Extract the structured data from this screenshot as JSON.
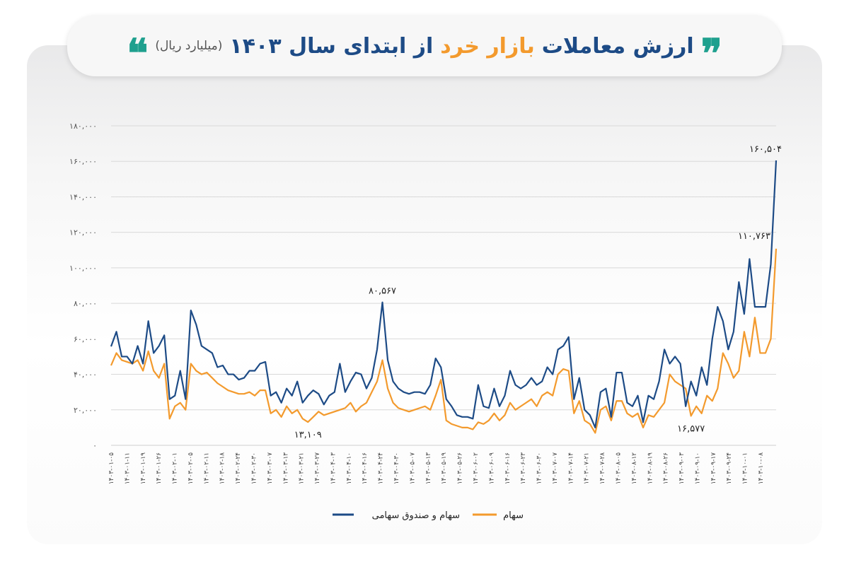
{
  "title": {
    "part1": "ارزش معاملات",
    "part2": "بازار خرد",
    "part3": "از ابتدای سال ۱۴۰۳",
    "unit": "(میلیارد ریال)",
    "quote_open": "❞",
    "quote_close": "❝"
  },
  "colors": {
    "series_total": "#1d4b86",
    "series_stock": "#f39a2d",
    "quote": "#1fa08e",
    "grid": "#d9d9d9"
  },
  "chart_data": {
    "type": "line",
    "title": "ارزش معاملات بازار خرد از ابتدای سال ۱۴۰۳ (میلیارد ریال)",
    "ylim": [
      0,
      180000
    ],
    "grid": true,
    "legend_placement": "bottom-center",
    "y_ticks": [
      0,
      20000,
      40000,
      60000,
      80000,
      100000,
      120000,
      140000,
      160000,
      180000
    ],
    "y_tick_labels": [
      "۰",
      "۲۰,۰۰۰",
      "۴۰,۰۰۰",
      "۶۰,۰۰۰",
      "۸۰,۰۰۰",
      "۱۰۰,۰۰۰",
      "۱۲۰,۰۰۰",
      "۱۴۰,۰۰۰",
      "۱۶۰,۰۰۰",
      "۱۸۰,۰۰۰"
    ],
    "x_tick_labels": [
      "۱۴۰۳-۰۱-۰۵",
      "۱۴۰۳-۰۱-۱۱",
      "۱۴۰۳-۰۱-۱۹",
      "۱۴۰۳-۰۱-۲۶",
      "۱۴۰۳-۰۲-۰۱",
      "۱۴۰۳-۰۲-۰۵",
      "۱۴۰۳-۰۲-۱۱",
      "۱۴۰۳-۰۲-۱۸",
      "۱۴۰۳-۰۲-۲۴",
      "۱۴۰۳-۰۲-۳۰",
      "۱۴۰۳-۰۳-۰۷",
      "۱۴۰۳-۰۳-۱۳",
      "۱۴۰۳-۰۳-۲۱",
      "۱۴۰۳-۰۳-۲۷",
      "۱۴۰۳-۰۴-۰۳",
      "۱۴۰۳-۰۴-۱۰",
      "۱۴۰۳-۰۴-۱۶",
      "۱۴۰۳-۰۴-۲۴",
      "۱۴۰۳-۰۴-۳۰",
      "۱۴۰۳-۰۵-۰۷",
      "۱۴۰۳-۰۵-۱۳",
      "۱۴۰۳-۰۵-۱۹",
      "۱۴۰۳-۰۵-۲۶",
      "۱۴۰۳-۰۶-۰۲",
      "۱۴۰۳-۰۶-۰۹",
      "۱۴۰۳-۰۶-۱۶",
      "۱۴۰۳-۰۶-۲۳",
      "۱۴۰۳-۰۶-۳۰",
      "۱۴۰۳-۰۷-۰۷",
      "۱۴۰۳-۰۷-۱۴",
      "۱۴۰۳-۰۷-۲۱",
      "۱۴۰۳-۰۷-۲۸",
      "۱۴۰۳-۰۸-۰۵",
      "۱۴۰۳-۰۸-۱۲",
      "۱۴۰۳-۰۸-۱۹",
      "۱۴۰۳-۰۸-۲۶",
      "۱۴۰۳-۰۹-۰۳",
      "۱۴۰۳-۰۹-۱۰",
      "۱۴۰۳-۰۹-۱۷",
      "۱۴۰۳-۰۹-۲۴",
      "۱۴۰۳-۱۰-۰۱",
      "۱۴۰۳-۱۰-۰۸"
    ],
    "series": [
      {
        "name": "سهام و صندوق سهامی",
        "color": "#1d4b86",
        "values": [
          55700,
          64000,
          50000,
          50000,
          46000,
          56000,
          46000,
          70000,
          52000,
          56000,
          62000,
          26000,
          28000,
          42000,
          26000,
          76000,
          68000,
          56000,
          54000,
          52000,
          44000,
          45000,
          40000,
          40000,
          37000,
          38000,
          42000,
          42000,
          46000,
          47000,
          28000,
          30000,
          24000,
          32000,
          28000,
          36000,
          24000,
          28000,
          31000,
          29000,
          23000,
          28000,
          30000,
          46000,
          30000,
          36000,
          41000,
          40000,
          32000,
          38000,
          54000,
          80567,
          48000,
          36000,
          32000,
          30000,
          29000,
          30000,
          30000,
          29000,
          34000,
          49000,
          44000,
          26000,
          22000,
          17000,
          16000,
          16000,
          15000,
          34000,
          22000,
          21000,
          32000,
          22000,
          28000,
          42000,
          34000,
          32000,
          34000,
          38000,
          34000,
          36000,
          44000,
          40000,
          54000,
          56000,
          61000,
          26000,
          38000,
          20000,
          17000,
          10000,
          30000,
          32000,
          16000,
          41000,
          41000,
          24000,
          22000,
          28000,
          13000,
          28000,
          26000,
          36000,
          54000,
          46000,
          50000,
          46000,
          22000,
          36000,
          28000,
          44000,
          34000,
          60000,
          78000,
          70000,
          54000,
          64000,
          92000,
          74000,
          105000,
          78000,
          78000,
          78000,
          102000,
          160504
        ]
      },
      {
        "name": "سهام",
        "color": "#f39a2d",
        "values": [
          45000,
          52000,
          48000,
          47000,
          46000,
          48000,
          42000,
          53000,
          42000,
          38000,
          46000,
          15000,
          22000,
          24000,
          20000,
          46000,
          42000,
          40000,
          41000,
          38000,
          35000,
          33000,
          31000,
          30000,
          29000,
          29000,
          30000,
          28000,
          31000,
          31000,
          18000,
          20000,
          16000,
          22000,
          18000,
          20000,
          15000,
          13109,
          16000,
          19000,
          17000,
          18000,
          19000,
          20000,
          21000,
          24000,
          19000,
          22000,
          24000,
          30000,
          36000,
          48000,
          32000,
          24000,
          21000,
          20000,
          19000,
          20000,
          21000,
          22000,
          20000,
          28000,
          37000,
          14000,
          12000,
          11000,
          10000,
          10000,
          9000,
          13000,
          12000,
          14000,
          18000,
          14000,
          17000,
          24000,
          20000,
          22000,
          24000,
          26000,
          22000,
          28000,
          30000,
          28000,
          40000,
          43000,
          42000,
          18000,
          25000,
          14000,
          12000,
          7000,
          20000,
          22000,
          14000,
          25000,
          25000,
          18000,
          16000,
          18000,
          10000,
          17000,
          16000,
          20000,
          24000,
          40000,
          36000,
          34000,
          32000,
          16577,
          22000,
          18000,
          28000,
          25000,
          32000,
          52000,
          46000,
          38000,
          42000,
          64000,
          50000,
          72000,
          52000,
          52000,
          60000,
          110763
        ]
      }
    ],
    "annotations": [
      {
        "text": "۱۶۰,۵۰۴",
        "series": 0,
        "index": 125,
        "value": 160504
      },
      {
        "text": "۱۱۰,۷۶۳",
        "series": 1,
        "index": 125,
        "value": 110763
      },
      {
        "text": "۸۰,۵۶۷",
        "series": 0,
        "index": 51,
        "value": 80567
      },
      {
        "text": "۱۳,۱۰۹",
        "series": 1,
        "index": 37,
        "value": 13109
      },
      {
        "text": "۱۶,۵۷۷",
        "series": 1,
        "index": 109,
        "value": 16577
      }
    ]
  }
}
